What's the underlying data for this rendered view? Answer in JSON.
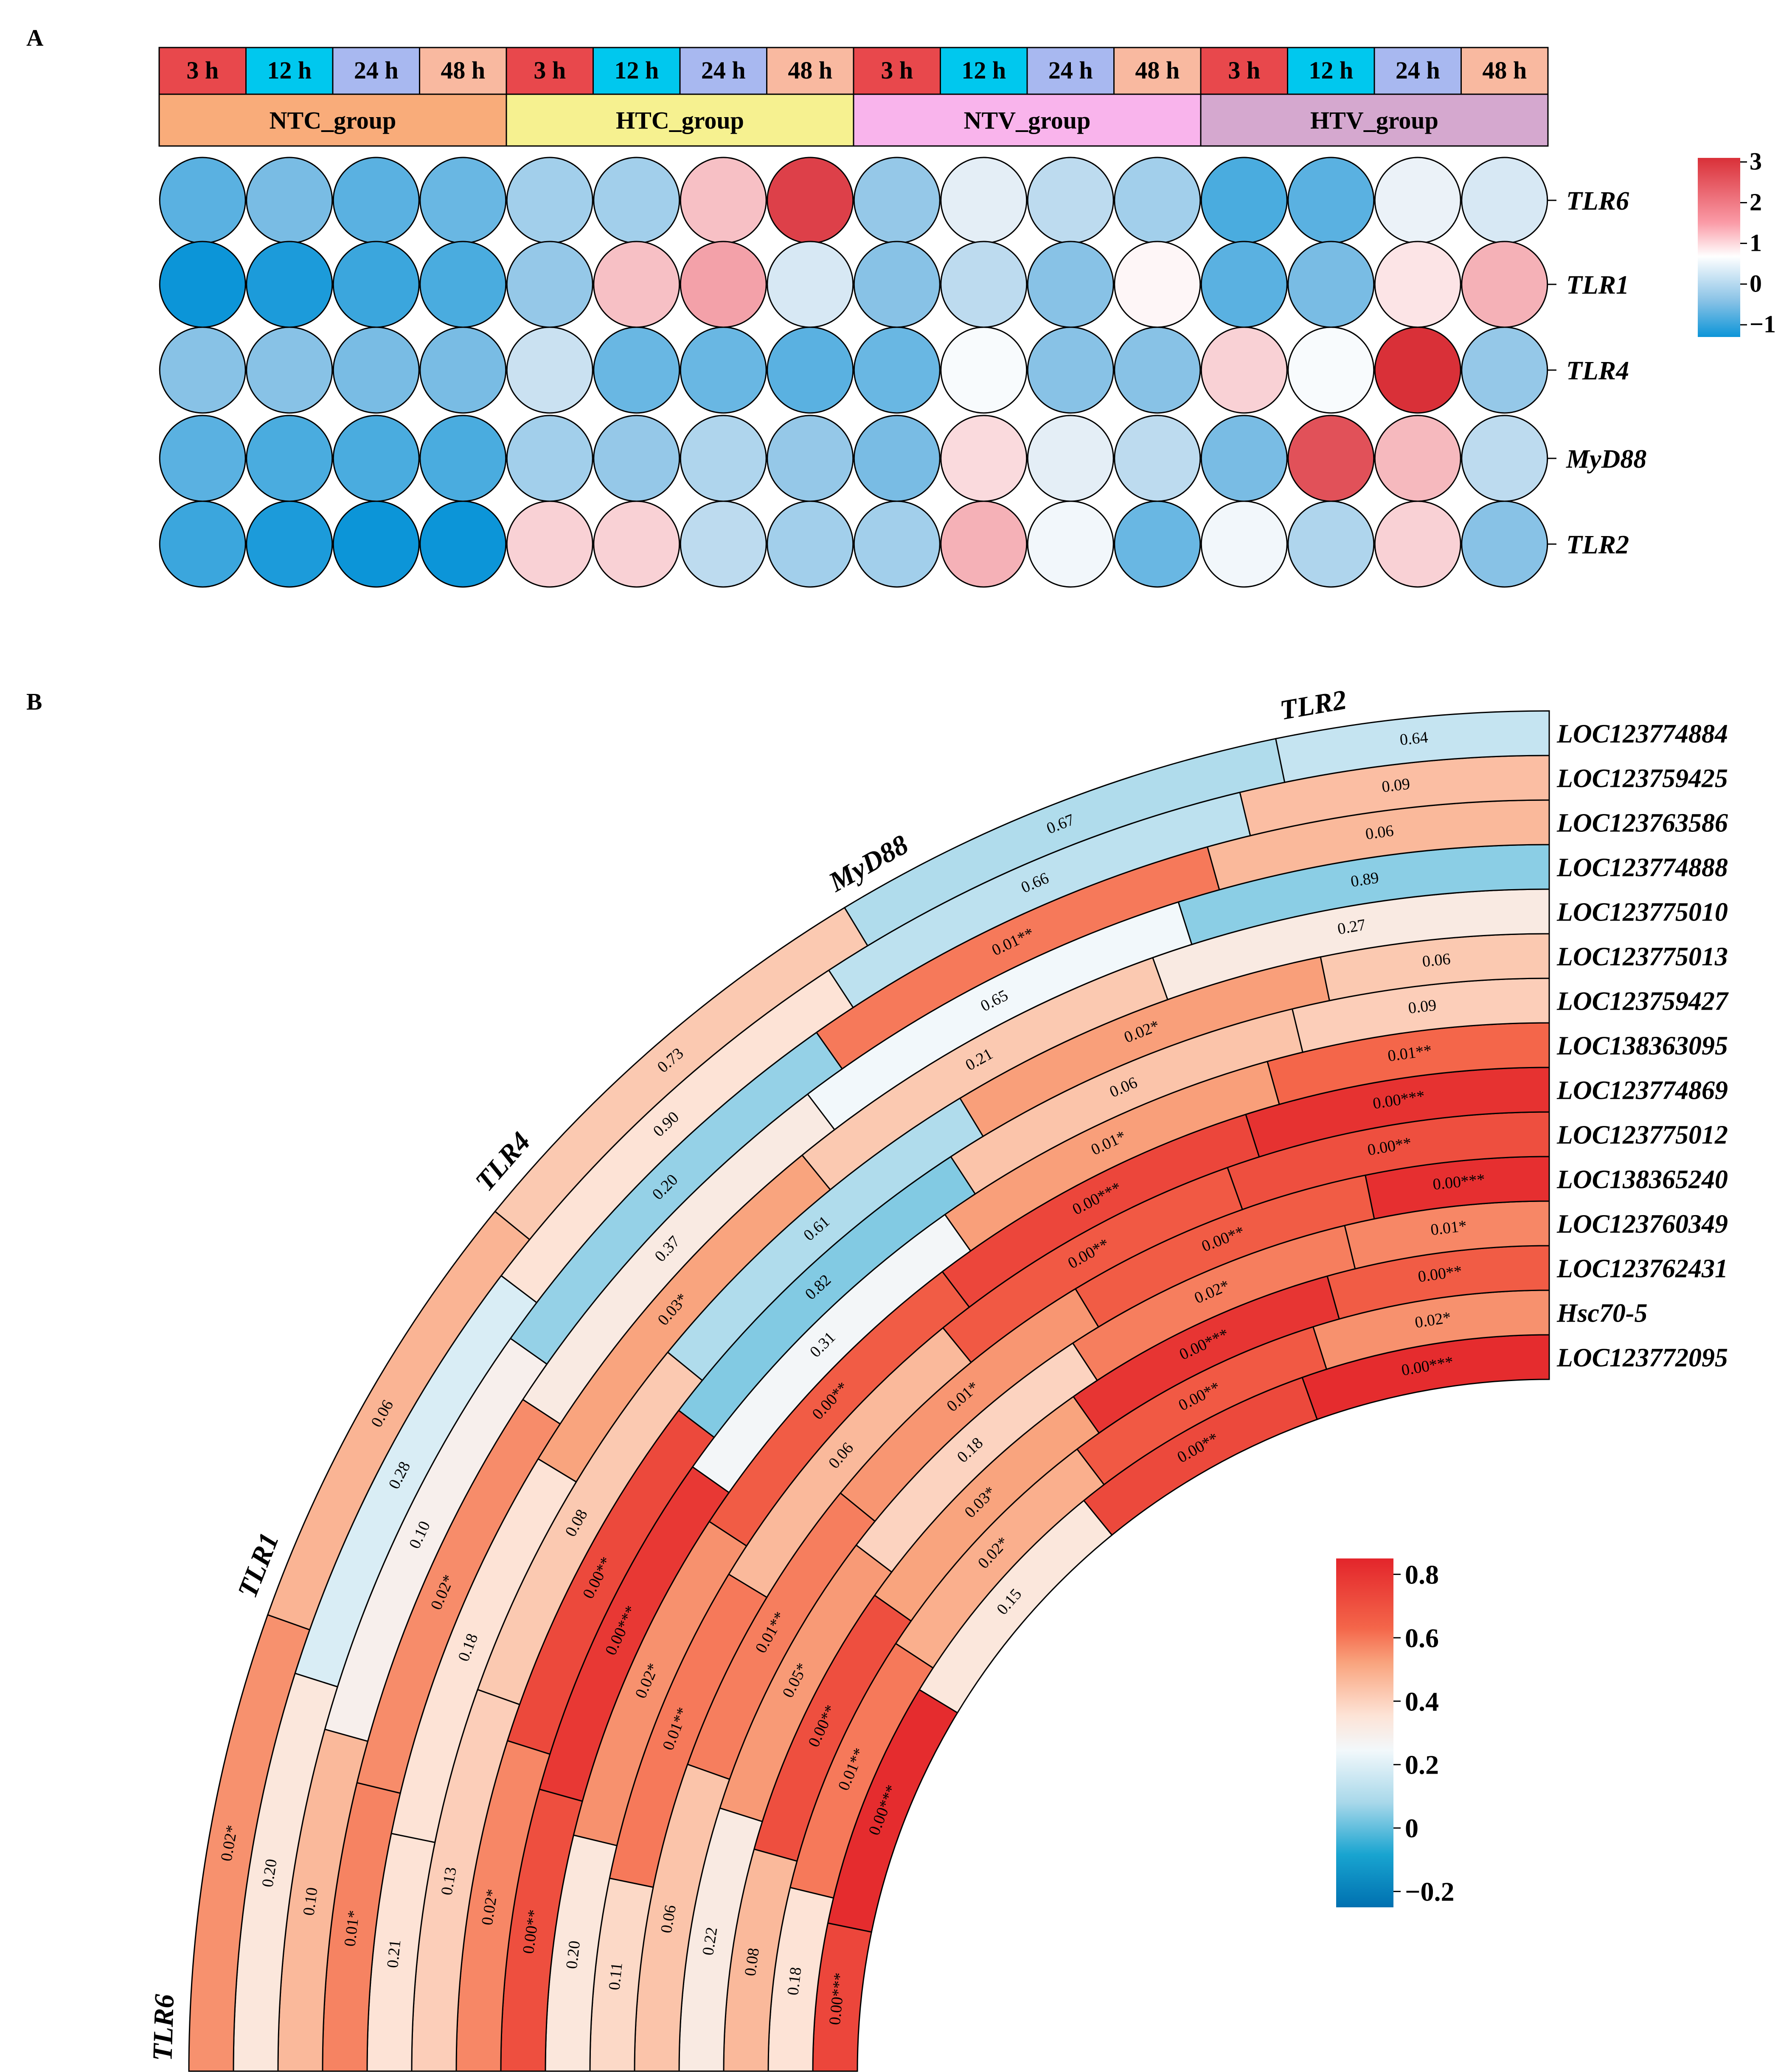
{
  "panel_labels": {
    "a": "A",
    "b": "B"
  },
  "colors": {
    "time": [
      "#e8484c",
      "#00c8ee",
      "#a8b8f0",
      "#f9b9a0"
    ],
    "group": [
      "#f9ac7a",
      "#f6f190",
      "#f9b4ec",
      "#d5a8cf"
    ],
    "red": "#e3252b",
    "blue": "#0080c0"
  },
  "chart_data": [
    {
      "id": "A",
      "type": "heatmap",
      "style": "bubble",
      "time_points": [
        "3 h",
        "12 h",
        "24 h",
        "48 h"
      ],
      "groups": [
        "NTC_group",
        "HTC_group",
        "NTV_group",
        "HTV_group"
      ],
      "genes": [
        "TLR6",
        "TLR1",
        "TLR4",
        "MyD88",
        "TLR2"
      ],
      "columns": [
        "NTC 3 h",
        "NTC 12 h",
        "NTC 24 h",
        "NTC 48 h",
        "HTC 3 h",
        "HTC 12 h",
        "HTC 24 h",
        "HTC 48 h",
        "NTV 3 h",
        "NTV 12 h",
        "NTV 24 h",
        "NTV 48 h",
        "HTV 3 h",
        "HTV 12 h",
        "HTV 24 h",
        "HTV 48 h"
      ],
      "values": [
        [
          -0.8,
          -0.6,
          -0.8,
          -0.7,
          -0.3,
          -0.3,
          1.3,
          2.9,
          -0.4,
          0.2,
          -0.1,
          -0.3,
          -0.9,
          -0.8,
          0.3,
          0.1
        ],
        [
          -1.3,
          -1.2,
          -1.0,
          -0.9,
          -0.4,
          1.3,
          1.7,
          0.1,
          -0.5,
          -0.1,
          -0.5,
          0.7,
          -0.8,
          -0.6,
          0.9,
          1.5
        ],
        [
          -0.5,
          -0.5,
          -0.6,
          -0.6,
          0.0,
          -0.7,
          -0.7,
          -0.8,
          -0.7,
          0.5,
          -0.5,
          -0.5,
          1.1,
          0.5,
          3.1,
          -0.4
        ],
        [
          -0.8,
          -0.9,
          -0.9,
          -0.9,
          -0.3,
          -0.4,
          -0.2,
          -0.4,
          -0.6,
          1.0,
          0.2,
          -0.1,
          -0.6,
          2.7,
          1.4,
          -0.1
        ],
        [
          -1.0,
          -1.2,
          -1.3,
          -1.3,
          1.1,
          1.1,
          -0.1,
          -0.3,
          -0.3,
          1.5,
          0.4,
          -0.7,
          0.4,
          -0.2,
          1.1,
          -0.5
        ]
      ],
      "legend": {
        "ticks": [
          "3",
          "2",
          "1",
          "0",
          "−1"
        ],
        "range": [
          -1.3,
          3.1
        ]
      }
    },
    {
      "id": "B",
      "type": "heatmap",
      "style": "circular",
      "sectors": [
        "TLR6",
        "TLR1",
        "TLR4",
        "MyD88",
        "TLR2"
      ],
      "rows": [
        "LOC123774884",
        "LOC123759425",
        "LOC123763586",
        "LOC123774888",
        "LOC123775010",
        "LOC123775013",
        "LOC123759427",
        "LOC138363095",
        "LOC123774869",
        "LOC123775012",
        "LOC138365240",
        "LOC123760349",
        "LOC123762431",
        "Hsc70-5",
        "LOC123772095"
      ],
      "correlations": [
        [
          0.75,
          0.4,
          0.48,
          0.36,
          0.46,
          0.42,
          0.38,
          0.72,
          0.58,
          0.44,
          0.4,
          0.59,
          0.48,
          0.38,
          0.56
        ],
        [
          0.83,
          0.61,
          0.72,
          0.54,
          0.6,
          0.61,
          0.56,
          0.79,
          0.74,
          0.45,
          0.4,
          0.57,
          0.33,
          0.22,
          0.49
        ],
        [
          0.38,
          0.5,
          0.52,
          0.43,
          0.55,
          0.48,
          0.68,
          0.29,
          0.06,
          0.12,
          0.52,
          0.36,
          0.08,
          0.4,
          0.45
        ],
        [
          0.74,
          0.69,
          0.8,
          0.6,
          0.68,
          0.69,
          0.75,
          0.53,
          0.46,
          0.53,
          0.45,
          0.28,
          0.61,
          0.15,
          0.12
        ],
        [
          0.83,
          0.56,
          0.68,
          0.58,
          0.82,
          0.72,
          0.81,
          0.65,
          0.44,
          0.45,
          0.36,
          0.07,
          0.48,
          0.47,
          0.17
        ]
      ],
      "labels": [
        [
          "0.00***",
          "0.18",
          "0.08",
          "0.22",
          "0.06",
          "0.11",
          "0.20",
          "0.00**",
          "0.02*",
          "0.13",
          "0.21",
          "0.01*",
          "0.10",
          "0.20",
          "0.02*"
        ],
        [
          "0.00***",
          "0.01**",
          "0.00**",
          "0.05*",
          "0.01**",
          "0.01**",
          "0.02*",
          "0.00***",
          "0.00**",
          "0.08",
          "0.18",
          "0.02*",
          "0.10",
          "0.28",
          "0.06"
        ],
        [
          "0.15",
          "0.02*",
          "0.03*",
          "0.18",
          "0.01*",
          "0.06",
          "0.00**",
          "0.31",
          "0.82",
          "0.61",
          "0.03*",
          "0.37",
          "0.20",
          "0.90",
          "0.73"
        ],
        [
          "0.00**",
          "0.00**",
          "0.00***",
          "0.02*",
          "0.00**",
          "0.00**",
          "0.00***",
          "0.01*",
          "0.06",
          "0.02*",
          "0.21",
          "0.65",
          "0.01**",
          "0.66",
          "0.67"
        ],
        [
          "0.00***",
          "0.02*",
          "0.00**",
          "0.01*",
          "0.00***",
          "0.00**",
          "0.00***",
          "0.01**",
          "0.09",
          "0.06",
          "0.27",
          "0.89",
          "0.06",
          "0.09",
          "0.64"
        ]
      ],
      "legend": {
        "ticks": [
          "0.8",
          "0.6",
          "0.4",
          "0.2",
          "0",
          "−0.2"
        ],
        "range": [
          -0.25,
          0.85
        ]
      }
    }
  ]
}
